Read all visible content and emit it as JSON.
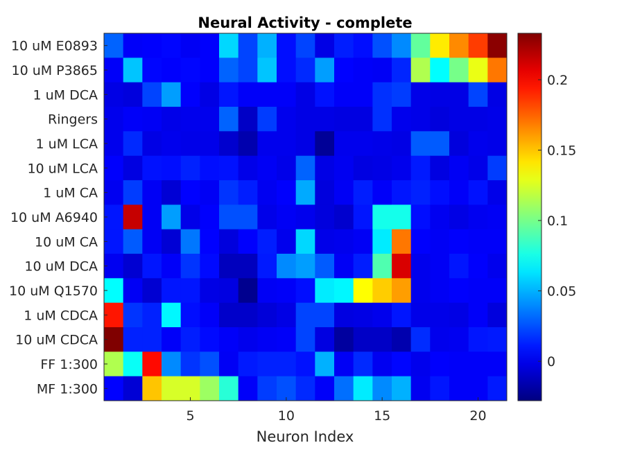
{
  "chart_data": {
    "type": "heatmap",
    "title": "Neural Activity - complete",
    "xlabel": "Neuron Index",
    "ylabel": "",
    "x": [
      1,
      2,
      3,
      4,
      5,
      6,
      7,
      8,
      9,
      10,
      11,
      12,
      13,
      14,
      15,
      16,
      17,
      18,
      19,
      20,
      21
    ],
    "x_tick_values": [
      5,
      10,
      15,
      20
    ],
    "rows": [
      "10 uM E0893",
      "10 uM P3865",
      "1 uM DCA",
      "Ringers",
      "1 uM LCA",
      "10 uM LCA",
      "1 uM CA",
      "10 uM A6940",
      "10 uM CA",
      "10 uM DCA",
      "10 uM Q1570",
      "1 uM CDCA",
      "10 uM CDCA",
      "FF 1:300",
      "MF 1:300"
    ],
    "colormap": "jet",
    "clim": [
      -0.028,
      0.233
    ],
    "colorbar_ticks": [
      0,
      0.05,
      0.1,
      0.15,
      0.2
    ],
    "colorbar_tick_labels": [
      "0",
      "0.05",
      "0.1",
      "0.15",
      "0.2"
    ],
    "values": [
      [
        0.03,
        0.003,
        0.004,
        0.006,
        0.002,
        0.004,
        0.06,
        0.022,
        0.05,
        0.008,
        0.022,
        -0.002,
        0.012,
        0.008,
        0.025,
        0.04,
        0.095,
        0.14,
        0.165,
        0.185,
        0.23
      ],
      [
        0.003,
        0.055,
        0.006,
        0.004,
        0.006,
        0.004,
        0.03,
        0.022,
        0.055,
        0.008,
        0.015,
        0.045,
        0.005,
        0.003,
        0.002,
        0.014,
        0.115,
        0.07,
        0.1,
        0.13,
        0.17
      ],
      [
        -0.002,
        -0.004,
        0.022,
        0.045,
        0.004,
        -0.002,
        0.01,
        0.003,
        0.003,
        0.003,
        -0.002,
        0.009,
        0.003,
        0.003,
        0.017,
        0.02,
        -0.001,
        -0.002,
        -0.002,
        0.022,
        -0.002
      ],
      [
        0.0,
        0.003,
        0.002,
        -0.001,
        0.0,
        0.0,
        0.03,
        -0.01,
        0.02,
        0.0,
        -0.002,
        -0.002,
        -0.003,
        -0.003,
        0.017,
        0.0,
        -0.001,
        -0.004,
        -0.002,
        -0.002,
        -0.001
      ],
      [
        0.0,
        0.015,
        -0.002,
        0.0,
        -0.001,
        -0.001,
        -0.008,
        -0.016,
        0.0,
        0.0,
        -0.002,
        -0.022,
        0.0,
        0.0,
        -0.001,
        -0.002,
        0.028,
        0.028,
        -0.004,
        0.0,
        -0.001
      ],
      [
        0.004,
        -0.003,
        0.009,
        0.008,
        0.013,
        0.008,
        0.009,
        -0.001,
        0.002,
        -0.001,
        0.03,
        -0.002,
        0.001,
        -0.003,
        -0.002,
        0.0,
        0.011,
        -0.003,
        0.002,
        -0.001,
        0.02
      ],
      [
        0.001,
        0.02,
        0.002,
        -0.006,
        0.005,
        0.002,
        0.018,
        0.012,
        0.001,
        0.004,
        0.048,
        -0.004,
        0.002,
        0.012,
        0.003,
        0.01,
        0.013,
        0.008,
        0.003,
        0.009,
        -0.001
      ],
      [
        0.01,
        0.215,
        0.002,
        0.045,
        -0.001,
        0.004,
        0.025,
        0.025,
        -0.001,
        0.002,
        0.0,
        -0.004,
        -0.008,
        0.01,
        0.075,
        0.075,
        0.008,
        0.001,
        -0.002,
        0.001,
        0.002
      ],
      [
        0.01,
        0.028,
        0.002,
        -0.006,
        0.035,
        0.005,
        -0.004,
        0.004,
        0.012,
        0.0,
        0.06,
        -0.001,
        0.0,
        0.002,
        0.065,
        0.17,
        0.004,
        0.002,
        0.004,
        0.003,
        0.003
      ],
      [
        0.001,
        -0.007,
        0.01,
        0.003,
        0.018,
        0.007,
        -0.012,
        -0.012,
        0.011,
        0.04,
        0.045,
        0.028,
        0.002,
        0.012,
        0.09,
        0.21,
        0.0,
        0.002,
        0.01,
        0.004,
        0.0
      ],
      [
        0.07,
        0.002,
        -0.007,
        0.01,
        0.01,
        -0.002,
        -0.003,
        -0.024,
        0.002,
        0.003,
        0.008,
        0.065,
        0.068,
        0.135,
        0.148,
        0.16,
        0.0,
        0.002,
        0.004,
        0.003,
        0.003
      ],
      [
        0.195,
        0.018,
        0.013,
        0.068,
        0.008,
        0.003,
        -0.009,
        -0.009,
        -0.005,
        -0.002,
        0.022,
        0.022,
        -0.003,
        -0.002,
        0.0,
        0.01,
        -0.001,
        -0.001,
        -0.002,
        0.003,
        -0.004
      ],
      [
        0.233,
        0.013,
        0.013,
        0.003,
        0.012,
        0.007,
        0.003,
        0.0,
        0.002,
        0.003,
        0.022,
        -0.003,
        -0.02,
        -0.01,
        -0.01,
        -0.016,
        0.016,
        0.0,
        0.001,
        0.01,
        0.011
      ],
      [
        0.115,
        0.072,
        0.198,
        0.04,
        0.018,
        0.025,
        0.002,
        0.011,
        0.013,
        0.013,
        0.009,
        0.05,
        0.002,
        0.015,
        0.001,
        0.006,
        0.0,
        0.004,
        0.003,
        0.003,
        0.003
      ],
      [
        0.005,
        -0.006,
        0.15,
        0.125,
        0.125,
        0.11,
        0.08,
        0.003,
        0.02,
        0.025,
        0.015,
        0.003,
        0.033,
        0.065,
        0.04,
        0.05,
        0.001,
        0.01,
        0.003,
        0.003,
        0.011
      ]
    ]
  }
}
